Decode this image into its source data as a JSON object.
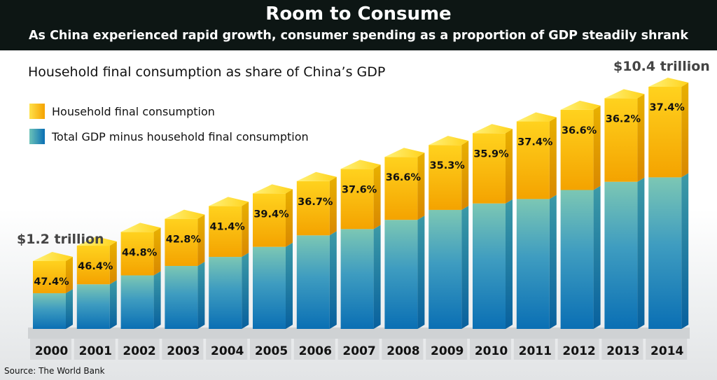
{
  "header": {
    "title": "Room to Consume",
    "subtitle": "As China experienced rapid growth, consumer spending as a proportion of GDP steadily shrank"
  },
  "chart_data": {
    "type": "bar",
    "title": "Household final consumption as share of China’s GDP",
    "categories": [
      "2000",
      "2001",
      "2002",
      "2003",
      "2004",
      "2005",
      "2006",
      "2007",
      "2008",
      "2009",
      "2010",
      "2011",
      "2012",
      "2013",
      "2014"
    ],
    "series": [
      {
        "name": "Household final consumption",
        "color": "#f5a800",
        "labels": [
          "47.4%",
          "46.4%",
          "44.8%",
          "42.8%",
          "41.4%",
          "39.4%",
          "36.7%",
          "37.6%",
          "36.6%",
          "35.3%",
          "35.9%",
          "37.4%",
          "36.6%",
          "36.2%",
          "37.4%"
        ],
        "values": [
          47.4,
          46.4,
          44.8,
          42.8,
          41.4,
          39.4,
          36.7,
          37.6,
          36.6,
          35.3,
          35.9,
          37.4,
          36.6,
          36.2,
          37.4
        ]
      },
      {
        "name": "Total GDP minus household final consumption",
        "color": "#0a72b8",
        "values": [
          52.6,
          53.6,
          55.2,
          57.2,
          58.6,
          60.6,
          63.3,
          62.4,
          63.4,
          64.7,
          64.1,
          62.6,
          63.4,
          63.8,
          62.6
        ]
      }
    ],
    "annotations": {
      "first": "$1.2 trillion",
      "last": "$10.4 trillion"
    },
    "source": "Source: The World Bank",
    "legend_position": "top-left"
  }
}
